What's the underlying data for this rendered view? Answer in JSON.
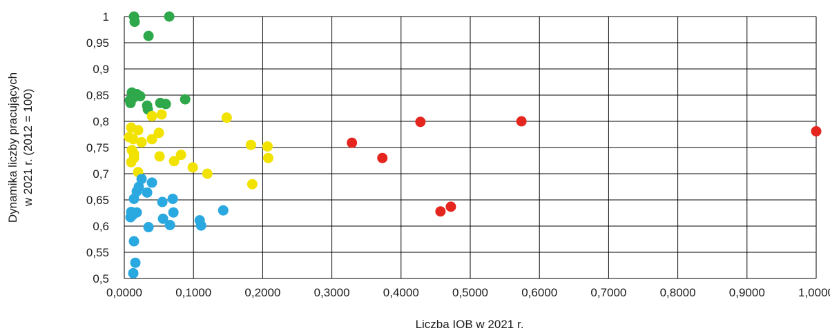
{
  "chart_data": {
    "type": "scatter",
    "xlabel": "Liczba IOB w 2021 r.",
    "ylabel_lines": [
      "Dynamika liczby pracujących",
      "w 2021 r. (2012 = 100)"
    ],
    "xlim": [
      0,
      1
    ],
    "ylim": [
      0.5,
      1
    ],
    "x_ticks": [
      0,
      0.1,
      0.2,
      0.3,
      0.4,
      0.5,
      0.6,
      0.7,
      0.8,
      0.9,
      1.0
    ],
    "x_tick_labels": [
      "0,0000",
      "0,1000",
      "0,2000",
      "0,3000",
      "0,4000",
      "0,5000",
      "0,6000",
      "0,7000",
      "0,8000",
      "0,9000",
      "1,0000"
    ],
    "y_ticks": [
      0.5,
      0.55,
      0.6,
      0.65,
      0.7,
      0.75,
      0.8,
      0.85,
      0.9,
      0.95,
      1
    ],
    "y_tick_labels": [
      "0,5",
      "0,55",
      "0,6",
      "0,65",
      "0,7",
      "0,75",
      "0,8",
      "0,85",
      "0,9",
      "0,95",
      "1"
    ],
    "grid": true,
    "legend": "none",
    "series": [
      {
        "color": "#2ea84a",
        "points": [
          [
            0.014,
            1.0
          ],
          [
            0.065,
            1.0
          ],
          [
            0.015,
            0.99
          ],
          [
            0.035,
            0.963
          ],
          [
            0.011,
            0.855
          ],
          [
            0.018,
            0.852
          ],
          [
            0.023,
            0.848
          ],
          [
            0.013,
            0.845
          ],
          [
            0.008,
            0.84
          ],
          [
            0.009,
            0.835
          ],
          [
            0.088,
            0.842
          ],
          [
            0.052,
            0.835
          ],
          [
            0.06,
            0.833
          ],
          [
            0.033,
            0.83
          ],
          [
            0.034,
            0.823
          ]
        ]
      },
      {
        "color": "#f2e200",
        "points": [
          [
            0.01,
            0.788
          ],
          [
            0.02,
            0.783
          ],
          [
            0.04,
            0.81
          ],
          [
            0.054,
            0.813
          ],
          [
            0.148,
            0.807
          ],
          [
            0.007,
            0.77
          ],
          [
            0.013,
            0.766
          ],
          [
            0.05,
            0.778
          ],
          [
            0.04,
            0.766
          ],
          [
            0.025,
            0.76
          ],
          [
            0.183,
            0.755
          ],
          [
            0.207,
            0.752
          ],
          [
            0.011,
            0.745
          ],
          [
            0.014,
            0.738
          ],
          [
            0.014,
            0.73
          ],
          [
            0.01,
            0.722
          ],
          [
            0.051,
            0.733
          ],
          [
            0.082,
            0.736
          ],
          [
            0.072,
            0.724
          ],
          [
            0.208,
            0.73
          ],
          [
            0.099,
            0.712
          ],
          [
            0.02,
            0.703
          ],
          [
            0.12,
            0.7
          ],
          [
            0.185,
            0.68
          ]
        ]
      },
      {
        "color": "#2aa8e0",
        "points": [
          [
            0.025,
            0.69
          ],
          [
            0.04,
            0.683
          ],
          [
            0.021,
            0.675
          ],
          [
            0.018,
            0.666
          ],
          [
            0.033,
            0.664
          ],
          [
            0.014,
            0.652
          ],
          [
            0.07,
            0.652
          ],
          [
            0.055,
            0.646
          ],
          [
            0.01,
            0.627
          ],
          [
            0.018,
            0.626
          ],
          [
            0.012,
            0.621
          ],
          [
            0.009,
            0.617
          ],
          [
            0.071,
            0.626
          ],
          [
            0.143,
            0.63
          ],
          [
            0.056,
            0.614
          ],
          [
            0.109,
            0.611
          ],
          [
            0.111,
            0.601
          ],
          [
            0.066,
            0.602
          ],
          [
            0.035,
            0.598
          ],
          [
            0.014,
            0.571
          ],
          [
            0.016,
            0.53
          ],
          [
            0.013,
            0.51
          ]
        ]
      },
      {
        "color": "#e5261f",
        "points": [
          [
            0.428,
            0.799
          ],
          [
            0.574,
            0.8
          ],
          [
            1.0,
            0.781
          ],
          [
            0.329,
            0.759
          ],
          [
            0.373,
            0.73
          ],
          [
            0.472,
            0.637
          ],
          [
            0.457,
            0.628
          ]
        ]
      }
    ]
  }
}
